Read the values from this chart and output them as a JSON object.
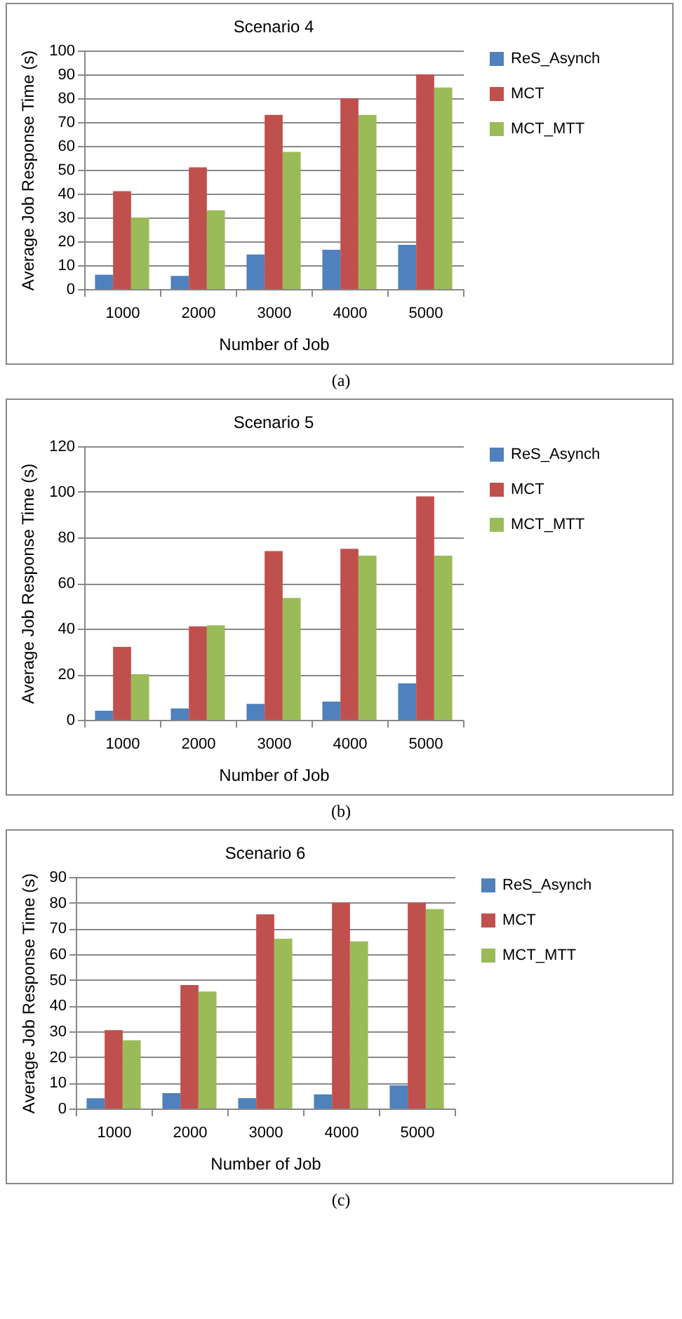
{
  "chart_data": [
    {
      "type": "bar",
      "title": "Scenario 4",
      "xlabel": "Number of Job",
      "ylabel": "Average  Job Response Time (s)",
      "categories": [
        "1000",
        "2000",
        "3000",
        "4000",
        "5000"
      ],
      "series": [
        {
          "name": "ReS_Asynch",
          "color": "#4f81bd",
          "values": [
            6,
            5.5,
            14.5,
            16.5,
            18.5
          ]
        },
        {
          "name": "MCT",
          "color": "#c0504d",
          "values": [
            41,
            51,
            73,
            80,
            90
          ]
        },
        {
          "name": "MCT_MTT",
          "color": "#9bbb59",
          "values": [
            30,
            33,
            57.5,
            73,
            84.5
          ]
        }
      ],
      "ylim": [
        0,
        100
      ],
      "yticks": [
        0,
        10,
        20,
        30,
        40,
        50,
        60,
        70,
        80,
        90,
        100
      ],
      "grid": "y",
      "legend": "right",
      "annotations": [
        "(a)"
      ]
    },
    {
      "type": "bar",
      "title": "Scenario 5",
      "xlabel": "Number of Job",
      "ylabel": "Average Job Response Time (s)",
      "categories": [
        "1000",
        "2000",
        "3000",
        "4000",
        "5000"
      ],
      "series": [
        {
          "name": "ReS_Asynch",
          "color": "#4f81bd",
          "values": [
            4,
            5,
            7,
            8,
            16
          ]
        },
        {
          "name": "MCT",
          "color": "#c0504d",
          "values": [
            32,
            41,
            74,
            75,
            98
          ]
        },
        {
          "name": "MCT_MTT",
          "color": "#9bbb59",
          "values": [
            20,
            41.5,
            53.5,
            72,
            72
          ]
        }
      ],
      "ylim": [
        0,
        120
      ],
      "yticks": [
        0,
        20,
        40,
        60,
        80,
        100,
        120
      ],
      "grid": "y",
      "legend": "right",
      "annotations": [
        "(b)"
      ]
    },
    {
      "type": "bar",
      "title": "Scenario 6",
      "xlabel": "Number of Job",
      "ylabel": "Average Job Response Time (s)",
      "categories": [
        "1000",
        "2000",
        "3000",
        "4000",
        "5000"
      ],
      "series": [
        {
          "name": "ReS_Asynch",
          "color": "#4f81bd",
          "values": [
            4,
            6,
            4,
            5.5,
            9
          ]
        },
        {
          "name": "MCT",
          "color": "#c0504d",
          "values": [
            30.5,
            48,
            75.5,
            80,
            80
          ]
        },
        {
          "name": "MCT_MTT",
          "color": "#9bbb59",
          "values": [
            26.5,
            45.5,
            66,
            65,
            77.5
          ]
        }
      ],
      "ylim": [
        0,
        90
      ],
      "yticks": [
        0,
        10,
        20,
        30,
        40,
        50,
        60,
        70,
        80,
        90
      ],
      "grid": "y",
      "legend": "right",
      "annotations": [
        "(c)"
      ]
    }
  ]
}
